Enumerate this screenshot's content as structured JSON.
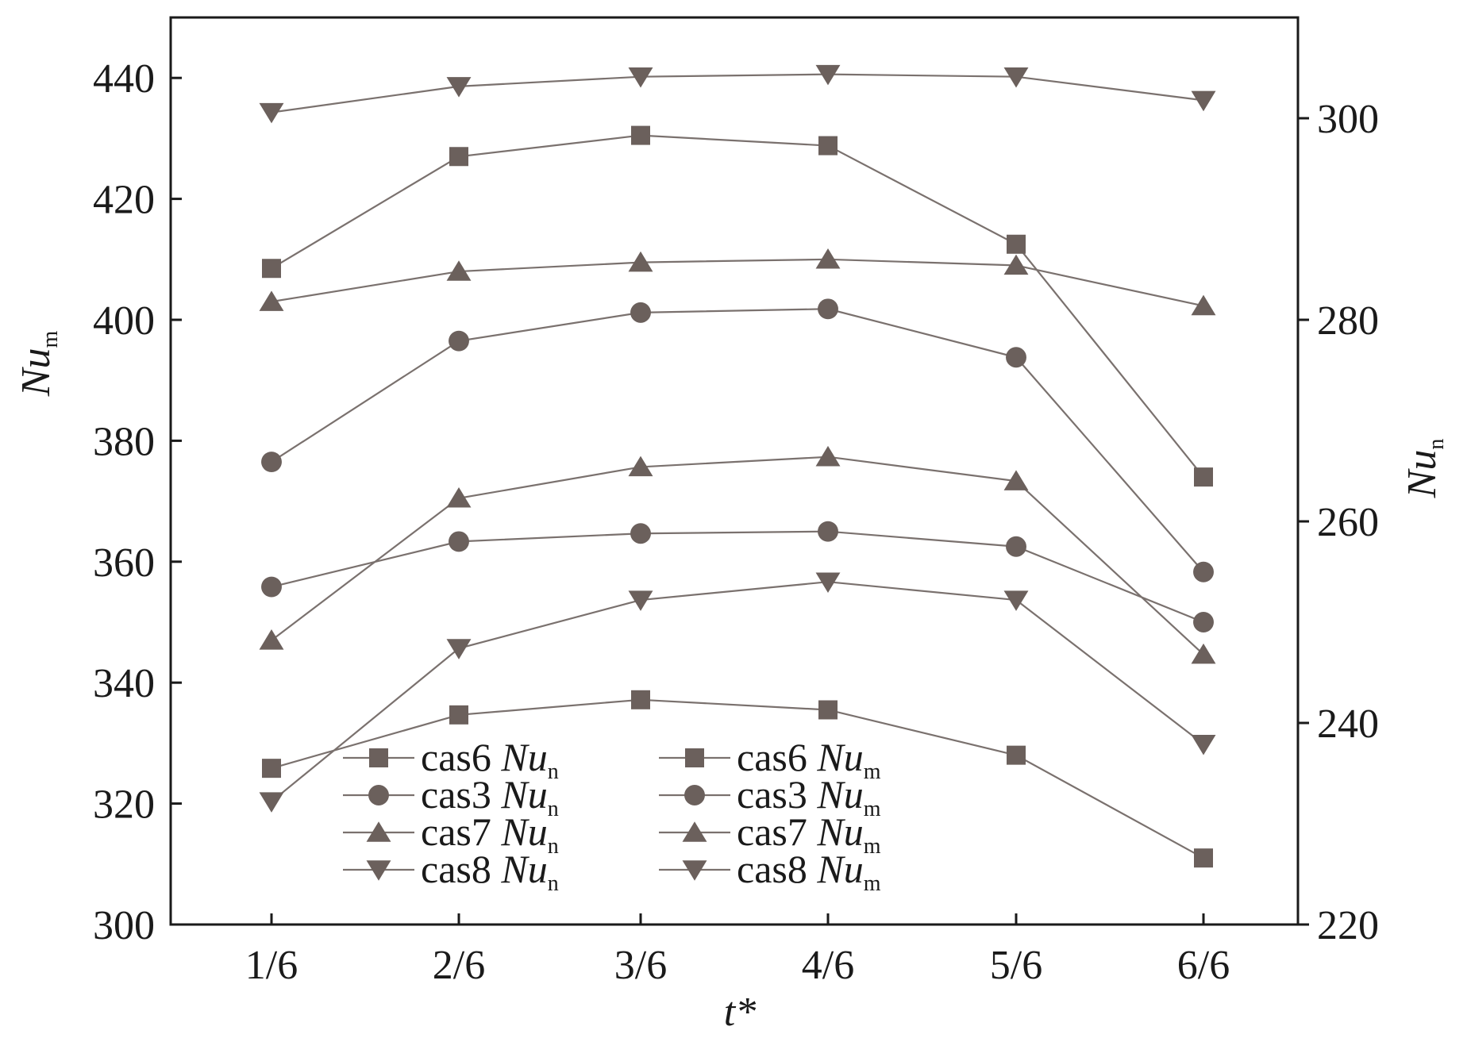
{
  "chart_data": {
    "type": "line",
    "categories": [
      "1/6",
      "2/6",
      "3/6",
      "4/6",
      "5/6",
      "6/6"
    ],
    "xlabel": "t*",
    "ylabel_left": {
      "main": "Nu",
      "sub": "m"
    },
    "ylabel_right": {
      "main": "Nu",
      "sub": "n"
    },
    "ylim_left": [
      300,
      450
    ],
    "ylim_right": [
      220,
      310
    ],
    "yticks_left": [
      300,
      320,
      340,
      360,
      380,
      400,
      420,
      440
    ],
    "yticks_right": [
      220,
      240,
      260,
      280,
      300
    ],
    "grid": false,
    "legend_position": "lower-left",
    "line_color": "#7a716e",
    "marker_color": "#6b605c",
    "series": [
      {
        "legend": {
          "name": "cas6 ",
          "var": "Nu",
          "sub": "n"
        },
        "marker": "square",
        "axis": "right",
        "values": [
          235.5,
          240.8,
          242.3,
          241.3,
          236.8,
          226.6
        ]
      },
      {
        "legend": {
          "name": "cas3 ",
          "var": "Nu",
          "sub": "n"
        },
        "marker": "circle",
        "axis": "right",
        "values": [
          253.5,
          258.0,
          258.8,
          259.0,
          257.5,
          250.0
        ]
      },
      {
        "legend": {
          "name": "cas7 ",
          "var": "Nu",
          "sub": "n"
        },
        "marker": "triangle-up",
        "axis": "right",
        "values": [
          248.2,
          262.3,
          265.4,
          266.4,
          264.0,
          246.8
        ]
      },
      {
        "legend": {
          "name": "cas8 ",
          "var": "Nu",
          "sub": "n"
        },
        "marker": "triangle-down",
        "axis": "right",
        "values": [
          232.2,
          247.4,
          252.2,
          254.0,
          252.2,
          237.9
        ]
      },
      {
        "legend": {
          "name": "cas6 ",
          "var": "Nu",
          "sub": "m"
        },
        "marker": "square",
        "axis": "left",
        "values": [
          408.5,
          427.0,
          430.5,
          428.8,
          412.5,
          374.0
        ]
      },
      {
        "legend": {
          "name": "cas3 ",
          "var": "Nu",
          "sub": "m"
        },
        "marker": "circle",
        "axis": "left",
        "values": [
          376.5,
          396.5,
          401.2,
          401.8,
          393.8,
          358.3
        ]
      },
      {
        "legend": {
          "name": "cas7 ",
          "var": "Nu",
          "sub": "m"
        },
        "marker": "triangle-up",
        "axis": "left",
        "values": [
          403.0,
          408.0,
          409.5,
          410.0,
          409.0,
          402.3
        ]
      },
      {
        "legend": {
          "name": "cas8 ",
          "var": "Nu",
          "sub": "m"
        },
        "marker": "triangle-down",
        "axis": "left",
        "values": [
          434.3,
          438.6,
          440.2,
          440.6,
          440.2,
          436.3
        ]
      }
    ]
  }
}
